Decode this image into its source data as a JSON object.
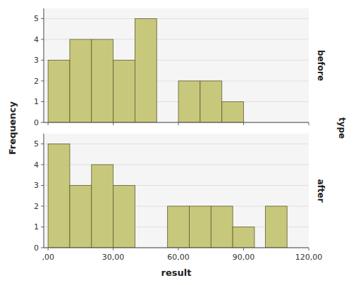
{
  "chart_data": [
    {
      "type": "bar",
      "title": "before",
      "ylabel": "Frequency",
      "facet_label": "type",
      "x": [
        0,
        10,
        20,
        30,
        40,
        60,
        70,
        80
      ],
      "values": [
        3,
        4,
        4,
        3,
        5,
        2,
        2,
        1
      ],
      "bin_width": 10,
      "color": "#c8c87c",
      "xlim": [
        -2,
        120
      ],
      "xticks": [
        0,
        30,
        60,
        90,
        120
      ],
      "ylim": [
        0,
        5.49
      ],
      "yticks": [
        0,
        1,
        2,
        3,
        4,
        5
      ],
      "tick_labels": "y"
    },
    {
      "type": "bar",
      "title": "after",
      "xlabel": "result",
      "x": [
        0,
        10,
        20,
        30,
        55,
        65,
        75,
        85,
        100
      ],
      "values": [
        5,
        3,
        4,
        3,
        2,
        2,
        2,
        1,
        2
      ],
      "bin_width": 10,
      "color": "#c8c87c",
      "xlim": [
        -2,
        120
      ],
      "xticks": [
        {
          "value": 0,
          "label": ",00"
        },
        {
          "value": 30,
          "label": "30,00"
        },
        {
          "value": 60,
          "label": "60,00"
        },
        {
          "value": 90,
          "label": "90,00"
        },
        {
          "value": 120,
          "label": "120,00"
        }
      ],
      "ylim": [
        0,
        5.49
      ],
      "yticks": [
        0,
        1,
        2,
        3,
        4,
        5
      ],
      "tick_labels": true
    }
  ]
}
